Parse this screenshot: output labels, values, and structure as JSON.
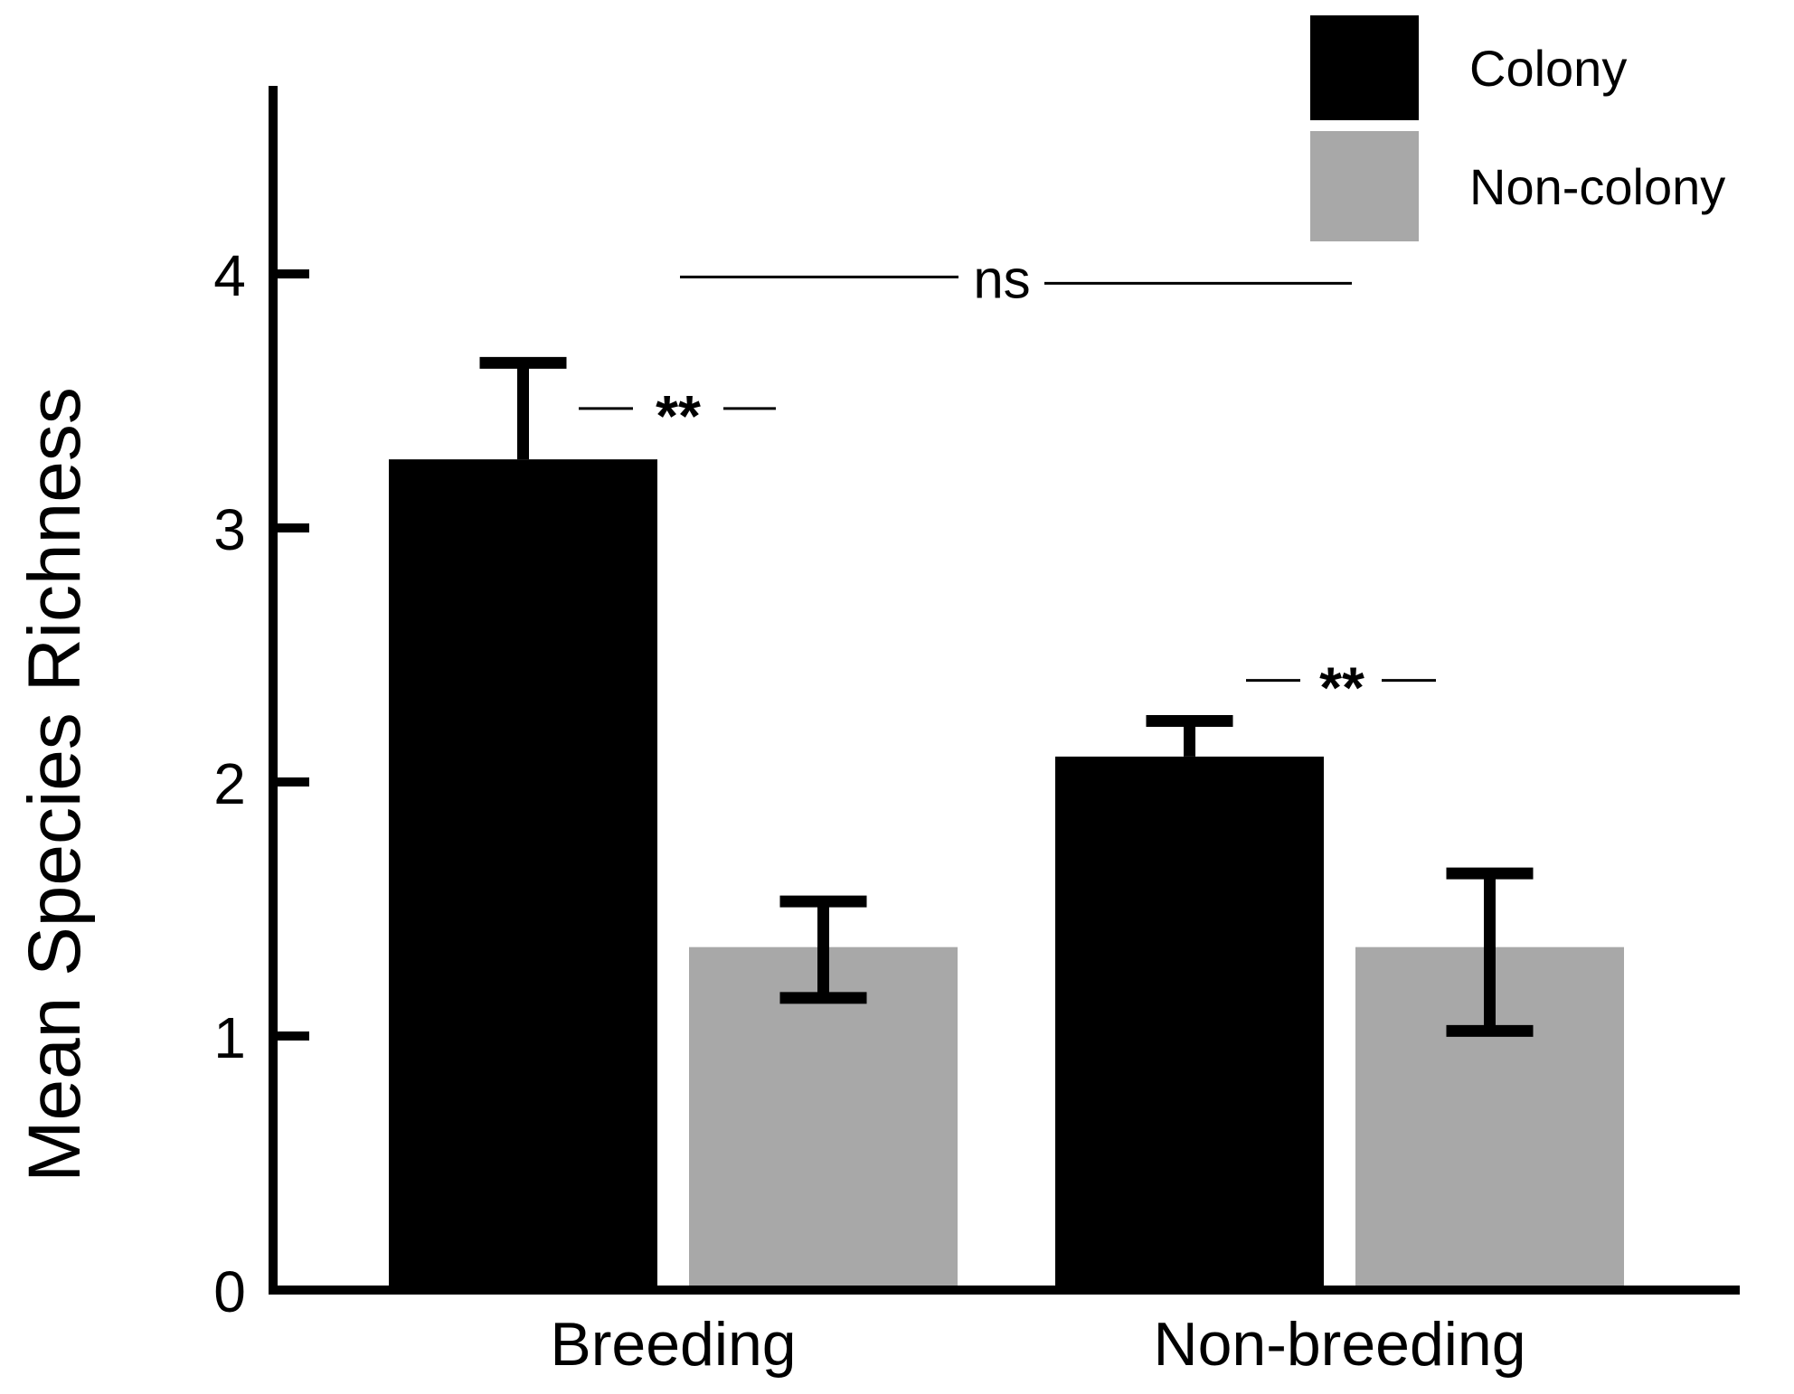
{
  "chart_data": {
    "type": "bar",
    "title": "",
    "xlabel": "",
    "ylabel": "Mean Species Richness",
    "ylim": [
      0,
      4.7
    ],
    "yticks": [
      0,
      1,
      2,
      3,
      4
    ],
    "ytick_labels": [
      "0",
      "1",
      "2",
      "3",
      "4"
    ],
    "grid": false,
    "categories": [
      "Breeding",
      "Non-breeding"
    ],
    "series": [
      {
        "name": "Colony",
        "color": "#000000",
        "values": [
          3.27,
          2.1
        ],
        "error_upper": [
          3.65,
          2.24
        ],
        "error_lower": [
          null,
          null
        ]
      },
      {
        "name": "Non-colony",
        "color": "#a8a8a8",
        "values": [
          1.35,
          1.35
        ],
        "error_upper": [
          1.53,
          1.64
        ],
        "error_lower": [
          1.15,
          1.02
        ]
      }
    ],
    "legend": {
      "placement": "top-right",
      "entries": [
        "Colony",
        "Non-colony"
      ]
    },
    "annotations": [
      {
        "text": "**",
        "type": "significance",
        "between": [
          "Colony",
          "Non-colony"
        ],
        "category": "Breeding",
        "y": 3.47
      },
      {
        "text": "**",
        "type": "significance",
        "between": [
          "Colony",
          "Non-colony"
        ],
        "category": "Non-breeding",
        "y": 2.4
      },
      {
        "text": "ns",
        "type": "significance",
        "between": [
          "Breeding",
          "Non-breeding"
        ],
        "y": 3.97
      }
    ]
  }
}
